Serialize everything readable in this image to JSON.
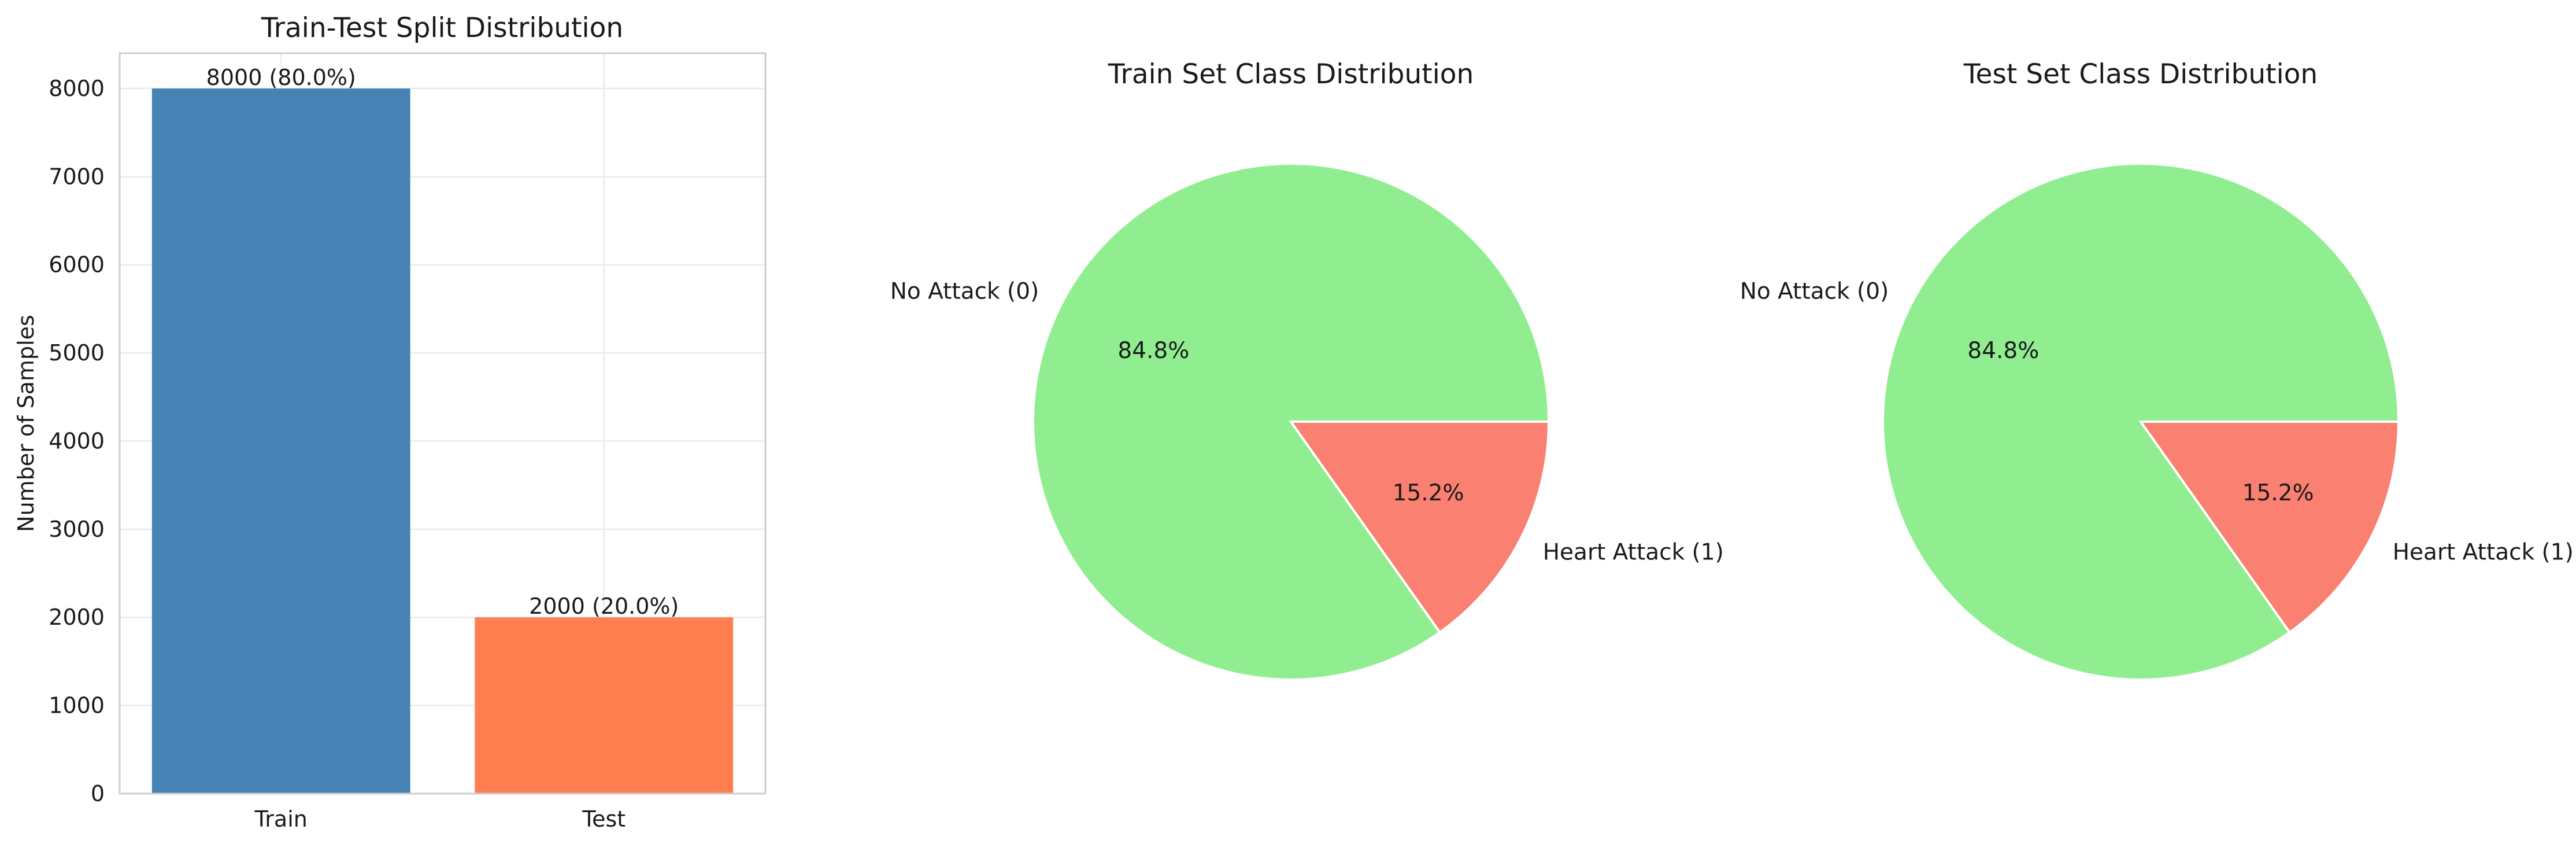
{
  "chart_data": [
    {
      "type": "bar",
      "title": "Train-Test Split Distribution",
      "xlabel": "",
      "ylabel": "Number of Samples",
      "categories": [
        "Train",
        "Test"
      ],
      "values": [
        8000,
        2000
      ],
      "data_labels": [
        "8000 (80.0%)",
        "2000 (20.0%)"
      ],
      "colors": [
        "#4682B4",
        "#FF7F50"
      ],
      "ylim": [
        0,
        8400
      ],
      "yticks": [
        0,
        1000,
        2000,
        3000,
        4000,
        5000,
        6000,
        7000,
        8000
      ],
      "grid": true
    },
    {
      "type": "pie",
      "title": "Train Set Class Distribution",
      "labels": [
        "No Attack (0)",
        "Heart Attack (1)"
      ],
      "values": [
        84.8,
        15.2
      ],
      "autopct": [
        "84.8%",
        "15.2%"
      ],
      "colors": [
        "#90EE90",
        "#FA8072"
      ]
    },
    {
      "type": "pie",
      "title": "Test Set Class Distribution",
      "labels": [
        "No Attack (0)",
        "Heart Attack (1)"
      ],
      "values": [
        84.8,
        15.2
      ],
      "autopct": [
        "84.8%",
        "15.2%"
      ],
      "colors": [
        "#90EE90",
        "#FA8072"
      ]
    }
  ]
}
